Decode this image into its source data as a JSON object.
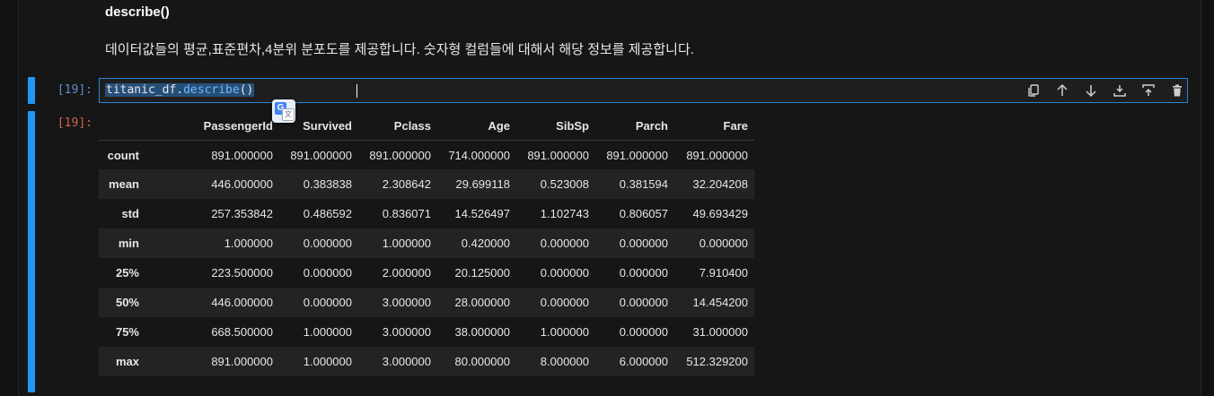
{
  "markdown": {
    "title": "describe()",
    "text": "데이터값들의 평균,표준편차,4분위 분포도를 제공합니다. 숫자형 컬럼들에 대해서 해당 정보를 제공합니다."
  },
  "input_cell": {
    "prompt": "[19]:",
    "code_var": "titanic_df.",
    "code_fn": "describe",
    "code_parens": "()"
  },
  "toolbar": {
    "icons": [
      "duplicate-icon",
      "move-up-icon",
      "move-down-icon",
      "insert-below-icon",
      "insert-above-icon",
      "delete-icon"
    ]
  },
  "output_cell": {
    "prompt": "[19]:",
    "columns": [
      "",
      "PassengerId",
      "Survived",
      "Pclass",
      "Age",
      "SibSp",
      "Parch",
      "Fare"
    ],
    "rows": [
      {
        "label": "count",
        "values": [
          "891.000000",
          "891.000000",
          "891.000000",
          "714.000000",
          "891.000000",
          "891.000000",
          "891.000000"
        ]
      },
      {
        "label": "mean",
        "values": [
          "446.000000",
          "0.383838",
          "2.308642",
          "29.699118",
          "0.523008",
          "0.381594",
          "32.204208"
        ]
      },
      {
        "label": "std",
        "values": [
          "257.353842",
          "0.486592",
          "0.836071",
          "14.526497",
          "1.102743",
          "0.806057",
          "49.693429"
        ]
      },
      {
        "label": "min",
        "values": [
          "1.000000",
          "0.000000",
          "1.000000",
          "0.420000",
          "0.000000",
          "0.000000",
          "0.000000"
        ]
      },
      {
        "label": "25%",
        "values": [
          "223.500000",
          "0.000000",
          "2.000000",
          "20.125000",
          "0.000000",
          "0.000000",
          "7.910400"
        ]
      },
      {
        "label": "50%",
        "values": [
          "446.000000",
          "0.000000",
          "3.000000",
          "28.000000",
          "0.000000",
          "0.000000",
          "14.454200"
        ]
      },
      {
        "label": "75%",
        "values": [
          "668.500000",
          "1.000000",
          "3.000000",
          "38.000000",
          "1.000000",
          "0.000000",
          "31.000000"
        ]
      },
      {
        "label": "max",
        "values": [
          "891.000000",
          "1.000000",
          "3.000000",
          "80.000000",
          "8.000000",
          "6.000000",
          "512.329200"
        ]
      }
    ]
  },
  "colors": {
    "accent": "#2196f3",
    "input_prompt": "#5b8fd6",
    "output_prompt": "#d0644a"
  }
}
